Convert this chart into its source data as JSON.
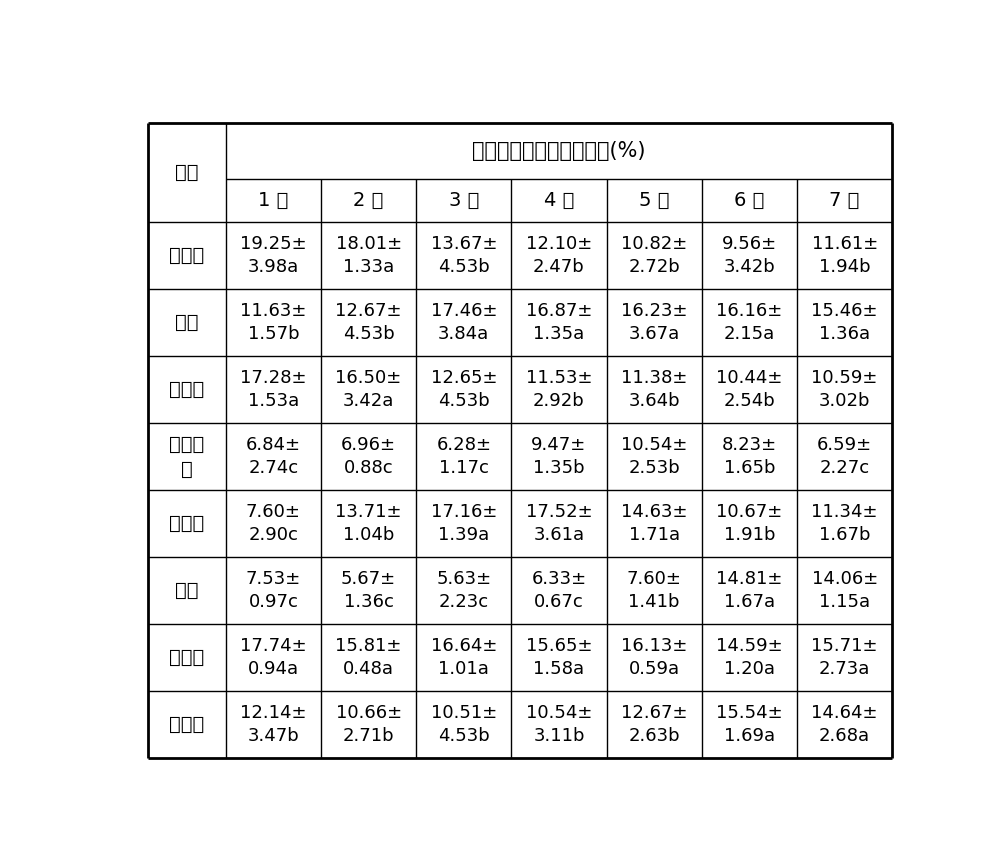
{
  "title": "不同虫龄取食选择百分率(%)",
  "plant_label": "植物",
  "col_headers": [
    "1 龄",
    "2 龄",
    "3 龄",
    "4 龄",
    "5 龄",
    "6 龄",
    "7 龄"
  ],
  "row_headers": [
    "珠芽蓼",
    "丹参",
    "圆穗蓼",
    "羊角天\n麻",
    "草石蚕",
    "菊芋",
    "小大黄",
    "胡萝卜"
  ],
  "data": [
    [
      "19.25±\n3.98a",
      "18.01±\n1.33a",
      "13.67±\n4.53b",
      "12.10±\n2.47b",
      "10.82±\n2.72b",
      "9.56±\n3.42b",
      "11.61±\n1.94b"
    ],
    [
      "11.63±\n1.57b",
      "12.67±\n4.53b",
      "17.46±\n3.84a",
      "16.87±\n1.35a",
      "16.23±\n3.67a",
      "16.16±\n2.15a",
      "15.46±\n1.36a"
    ],
    [
      "17.28±\n1.53a",
      "16.50±\n3.42a",
      "12.65±\n4.53b",
      "11.53±\n2.92b",
      "11.38±\n3.64b",
      "10.44±\n2.54b",
      "10.59±\n3.02b"
    ],
    [
      "6.84±\n2.74c",
      "6.96±\n0.88c",
      "6.28±\n1.17c",
      "9.47±\n1.35b",
      "10.54±\n2.53b",
      "8.23±\n1.65b",
      "6.59±\n2.27c"
    ],
    [
      "7.60±\n2.90c",
      "13.71±\n1.04b",
      "17.16±\n1.39a",
      "17.52±\n3.61a",
      "14.63±\n1.71a",
      "10.67±\n1.91b",
      "11.34±\n1.67b"
    ],
    [
      "7.53±\n0.97c",
      "5.67±\n1.36c",
      "5.63±\n2.23c",
      "6.33±\n0.67c",
      "7.60±\n1.41b",
      "14.81±\n1.67a",
      "14.06±\n1.15a"
    ],
    [
      "17.74±\n0.94a",
      "15.81±\n0.48a",
      "16.64±\n1.01a",
      "15.65±\n1.58a",
      "16.13±\n0.59a",
      "14.59±\n1.20a",
      "15.71±\n2.73a"
    ],
    [
      "12.14±\n3.47b",
      "10.66±\n2.71b",
      "10.51±\n4.53b",
      "10.54±\n3.11b",
      "12.67±\n2.63b",
      "15.54±\n1.69a",
      "14.64±\n2.68a"
    ]
  ],
  "bg_color": "#ffffff",
  "text_color": "#000000",
  "line_color": "#000000",
  "title_fontsize": 15,
  "header_fontsize": 14,
  "data_fontsize": 13,
  "plant_fontsize": 14
}
